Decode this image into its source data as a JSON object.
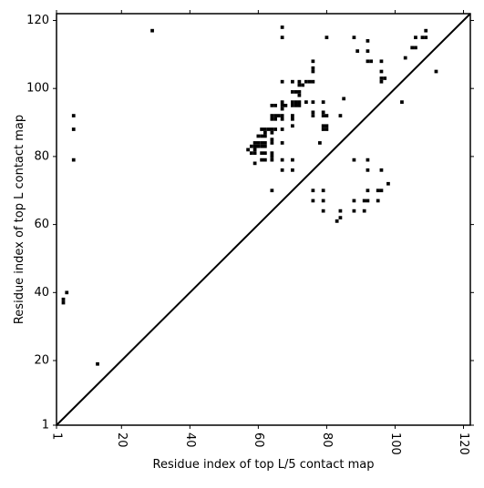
{
  "chart_data": {
    "type": "scatter",
    "xlabel": "Residue index of top L/5 contact map",
    "ylabel": "Residue index of top L contact map",
    "xlim": [
      1,
      122
    ],
    "ylim": [
      1,
      122
    ],
    "x_ticks": [
      1,
      20,
      40,
      60,
      80,
      100,
      120
    ],
    "y_ticks": [
      1,
      20,
      40,
      60,
      80,
      100,
      120
    ],
    "x_tick_labels": [
      "1",
      "20",
      "40",
      "60",
      "80",
      "100",
      "120"
    ],
    "y_tick_labels": [
      "1",
      "20",
      "40",
      "60",
      "80",
      "100",
      "120"
    ],
    "x_tick_label_rotation": 90,
    "diagonal": true,
    "grid": false,
    "marker": "square",
    "color": "#000000",
    "points": [
      [
        29,
        117
      ],
      [
        67,
        118
      ],
      [
        67,
        115
      ],
      [
        80,
        115
      ],
      [
        88,
        115
      ],
      [
        92,
        114
      ],
      [
        109,
        117
      ],
      [
        108,
        115
      ],
      [
        109,
        115
      ],
      [
        106,
        115
      ],
      [
        105,
        112
      ],
      [
        106,
        112
      ],
      [
        103,
        109
      ],
      [
        89,
        111
      ],
      [
        92,
        111
      ],
      [
        92,
        108
      ],
      [
        93,
        108
      ],
      [
        96,
        108
      ],
      [
        112,
        105
      ],
      [
        76,
        108
      ],
      [
        76,
        106
      ],
      [
        76,
        105
      ],
      [
        96,
        105
      ],
      [
        96,
        103
      ],
      [
        97,
        103
      ],
      [
        96,
        102
      ],
      [
        67,
        102
      ],
      [
        70,
        102
      ],
      [
        72,
        102
      ],
      [
        74,
        102
      ],
      [
        75,
        102
      ],
      [
        76,
        102
      ],
      [
        72,
        101
      ],
      [
        73,
        101
      ],
      [
        70,
        99
      ],
      [
        71,
        99
      ],
      [
        72,
        99
      ],
      [
        72,
        98
      ],
      [
        67,
        96
      ],
      [
        70,
        96
      ],
      [
        71,
        96
      ],
      [
        72,
        96
      ],
      [
        74,
        96
      ],
      [
        76,
        96
      ],
      [
        79,
        96
      ],
      [
        70,
        95
      ],
      [
        71,
        95
      ],
      [
        72,
        95
      ],
      [
        64,
        95
      ],
      [
        65,
        95
      ],
      [
        67,
        95
      ],
      [
        68,
        95
      ],
      [
        67,
        94
      ],
      [
        85,
        97
      ],
      [
        102,
        96
      ],
      [
        6,
        92
      ],
      [
        64,
        92
      ],
      [
        65,
        92
      ],
      [
        66,
        92
      ],
      [
        67,
        92
      ],
      [
        70,
        92
      ],
      [
        76,
        92
      ],
      [
        79,
        92
      ],
      [
        80,
        92
      ],
      [
        84,
        92
      ],
      [
        64,
        91
      ],
      [
        65,
        91
      ],
      [
        67,
        91
      ],
      [
        70,
        91
      ],
      [
        76,
        93
      ],
      [
        79,
        93
      ],
      [
        70,
        89
      ],
      [
        79,
        89
      ],
      [
        80,
        89
      ],
      [
        79,
        88
      ],
      [
        80,
        88
      ],
      [
        6,
        88
      ],
      [
        61,
        88
      ],
      [
        62,
        88
      ],
      [
        63,
        88
      ],
      [
        64,
        88
      ],
      [
        65,
        88
      ],
      [
        67,
        88
      ],
      [
        62,
        87
      ],
      [
        64,
        87
      ],
      [
        60,
        86
      ],
      [
        61,
        86
      ],
      [
        62,
        86
      ],
      [
        64,
        85
      ],
      [
        59,
        84
      ],
      [
        60,
        84
      ],
      [
        61,
        84
      ],
      [
        62,
        84
      ],
      [
        64,
        84
      ],
      [
        67,
        84
      ],
      [
        78,
        84
      ],
      [
        58,
        83
      ],
      [
        59,
        83
      ],
      [
        60,
        83
      ],
      [
        61,
        83
      ],
      [
        62,
        83
      ],
      [
        57,
        82
      ],
      [
        59,
        82
      ],
      [
        58,
        81
      ],
      [
        59,
        81
      ],
      [
        61,
        81
      ],
      [
        62,
        81
      ],
      [
        64,
        81
      ],
      [
        64,
        80
      ],
      [
        61,
        79
      ],
      [
        62,
        79
      ],
      [
        64,
        79
      ],
      [
        67,
        79
      ],
      [
        70,
        79
      ],
      [
        88,
        79
      ],
      [
        92,
        79
      ],
      [
        6,
        79
      ],
      [
        59,
        78
      ],
      [
        67,
        76
      ],
      [
        70,
        76
      ],
      [
        92,
        76
      ],
      [
        96,
        76
      ],
      [
        98,
        72
      ],
      [
        64,
        70
      ],
      [
        76,
        70
      ],
      [
        79,
        70
      ],
      [
        92,
        70
      ],
      [
        95,
        70
      ],
      [
        96,
        70
      ],
      [
        76,
        67
      ],
      [
        79,
        67
      ],
      [
        88,
        67
      ],
      [
        91,
        67
      ],
      [
        92,
        67
      ],
      [
        95,
        67
      ],
      [
        79,
        64
      ],
      [
        84,
        64
      ],
      [
        88,
        64
      ],
      [
        91,
        64
      ],
      [
        84,
        62
      ],
      [
        83,
        61
      ],
      [
        4,
        40
      ],
      [
        3,
        38
      ],
      [
        3,
        37
      ],
      [
        13,
        19
      ]
    ]
  }
}
